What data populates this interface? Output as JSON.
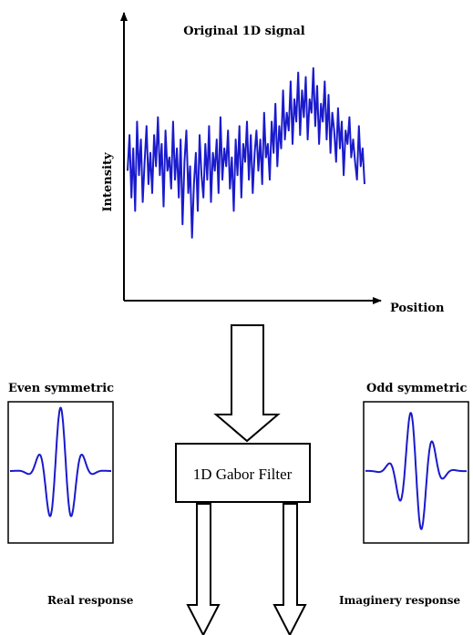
{
  "signal_plot": {
    "title": "Original 1D signal",
    "ylabel": "Intensity",
    "xlabel": "Position",
    "line_color": "#1a1acc"
  },
  "filter_box": {
    "label": "1D Gabor Filter"
  },
  "even_panel": {
    "title": "Even symmetric",
    "line_color": "#1a1acc"
  },
  "odd_panel": {
    "title": "Odd symmetric",
    "line_color": "#1a1acc"
  },
  "outputs": {
    "real_label": "Real response",
    "imaginary_label": "Imaginery response"
  },
  "chart_data": [
    {
      "type": "line",
      "title": "Original 1D signal",
      "xlabel": "Position",
      "ylabel": "Intensity",
      "grid": false,
      "series": [
        {
          "values": [
            0.48,
            0.64,
            0.36,
            0.58,
            0.3,
            0.7,
            0.46,
            0.62,
            0.34,
            0.52,
            0.68,
            0.42,
            0.56,
            0.38,
            0.64,
            0.5,
            0.72,
            0.46,
            0.6,
            0.32,
            0.66,
            0.48,
            0.54,
            0.4,
            0.7,
            0.44,
            0.58,
            0.36,
            0.62,
            0.24,
            0.52,
            0.66,
            0.38,
            0.5,
            0.18,
            0.42,
            0.56,
            0.3,
            0.64,
            0.46,
            0.36,
            0.6,
            0.44,
            0.68,
            0.34,
            0.56,
            0.48,
            0.62,
            0.38,
            0.72,
            0.44,
            0.58,
            0.5,
            0.66,
            0.4,
            0.54,
            0.3,
            0.62,
            0.46,
            0.68,
            0.36,
            0.6,
            0.52,
            0.7,
            0.44,
            0.64,
            0.38,
            0.56,
            0.66,
            0.48,
            0.62,
            0.42,
            0.74,
            0.54,
            0.6,
            0.44,
            0.7,
            0.56,
            0.78,
            0.5,
            0.68,
            0.58,
            0.84,
            0.62,
            0.74,
            0.66,
            0.88,
            0.6,
            0.8,
            0.7,
            0.92,
            0.64,
            0.84,
            0.72,
            0.9,
            0.62,
            0.8,
            0.74,
            0.94,
            0.68,
            0.86,
            0.6,
            0.78,
            0.7,
            0.88,
            0.62,
            0.82,
            0.56,
            0.74,
            0.66,
            0.52,
            0.76,
            0.58,
            0.7,
            0.46,
            0.66,
            0.6,
            0.72,
            0.54,
            0.62,
            0.52,
            0.44,
            0.68,
            0.5,
            0.58,
            0.42
          ]
        }
      ]
    },
    {
      "type": "line",
      "title": "Even symmetric",
      "sigma": 0.42,
      "frequency": 1.4,
      "phase": "cosine",
      "x_range": [
        -1.6,
        1.6
      ],
      "y_range": [
        -1.05,
        1.05
      ]
    },
    {
      "type": "line",
      "title": "Odd symmetric",
      "sigma": 0.42,
      "frequency": 1.4,
      "phase": "sine",
      "x_range": [
        -1.6,
        1.6
      ],
      "y_range": [
        -1.05,
        1.05
      ]
    }
  ]
}
